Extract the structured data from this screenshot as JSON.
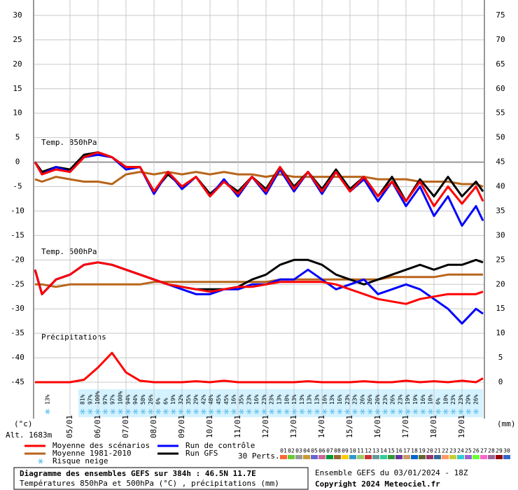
{
  "chart_data": {
    "type": "line",
    "title": "Diagramme des ensembles GEFS sur 384h : 46.5N 11.7E",
    "subtitle": "Températures 850hPa et 500hPa (°C) , précipitations (mm)",
    "run_label": "Ensemble GEFS du 03/01/2024 - 18Z",
    "copyright": "Copyright 2024 Meteociel.fr",
    "altitude": "Alt. 1683m",
    "y_unit": "(°c)",
    "y2_unit": "(mm)",
    "level_labels": {
      "t850": "Temp. 850hPa",
      "t500": "Temp. 500hPa",
      "precip": "Précipitations"
    },
    "perts_label": "30 Perts.",
    "members": [
      {
        "label": "01",
        "color": "#ff6633"
      },
      {
        "label": "02",
        "color": "#66cc33"
      },
      {
        "label": "03",
        "color": "#999999"
      },
      {
        "label": "04",
        "color": "#cc9933"
      },
      {
        "label": "05",
        "color": "#6666cc"
      },
      {
        "label": "06",
        "color": "#cc6699"
      },
      {
        "label": "07",
        "color": "#009933"
      },
      {
        "label": "08",
        "color": "#996633"
      },
      {
        "label": "09",
        "color": "#ffcc00"
      },
      {
        "label": "10",
        "color": "#3399cc"
      },
      {
        "label": "11",
        "color": "#99cc66"
      },
      {
        "label": "12",
        "color": "#cc3333"
      },
      {
        "label": "13",
        "color": "#669999"
      },
      {
        "label": "14",
        "color": "#33cc99"
      },
      {
        "label": "15",
        "color": "#339933"
      },
      {
        "label": "16",
        "color": "#663399"
      },
      {
        "label": "17",
        "color": "#cc9966"
      },
      {
        "label": "18",
        "color": "#0066cc"
      },
      {
        "label": "19",
        "color": "#666633"
      },
      {
        "label": "20",
        "color": "#993366"
      },
      {
        "label": "21",
        "color": "#336699"
      },
      {
        "label": "22",
        "color": "#ff9966"
      },
      {
        "label": "23",
        "color": "#cccc33"
      },
      {
        "label": "24",
        "color": "#33cccc"
      },
      {
        "label": "25",
        "color": "#9966cc"
      },
      {
        "label": "26",
        "color": "#66ff33"
      },
      {
        "label": "27",
        "color": "#ff66cc"
      },
      {
        "label": "28",
        "color": "#996699"
      },
      {
        "label": "29",
        "color": "#990000"
      },
      {
        "label": "30",
        "color": "#3366cc"
      }
    ],
    "x": [
      0,
      6,
      18,
      30,
      42,
      54,
      66,
      78,
      90,
      102,
      114,
      126,
      138,
      150,
      162,
      174,
      186,
      198,
      210,
      222,
      234,
      246,
      258,
      270,
      282,
      294,
      306,
      318,
      330,
      342,
      354,
      366,
      378,
      384
    ],
    "xlim": [
      0,
      384
    ],
    "xticks": [
      {
        "value": 30,
        "label": "05/01"
      },
      {
        "value": 54,
        "label": "06/01"
      },
      {
        "value": 78,
        "label": "07/01"
      },
      {
        "value": 102,
        "label": "08/01"
      },
      {
        "value": 126,
        "label": "09/01"
      },
      {
        "value": 150,
        "label": "10/01"
      },
      {
        "value": 174,
        "label": "11/01"
      },
      {
        "value": 198,
        "label": "12/01"
      },
      {
        "value": 222,
        "label": "13/01"
      },
      {
        "value": 246,
        "label": "14/01"
      },
      {
        "value": 270,
        "label": "15/01"
      },
      {
        "value": 294,
        "label": "16/01"
      },
      {
        "value": 318,
        "label": "17/01"
      },
      {
        "value": 342,
        "label": "18/01"
      },
      {
        "value": 366,
        "label": "19/01"
      }
    ],
    "ylim": [
      -45,
      30
    ],
    "yticks": [
      -45,
      -40,
      -35,
      -30,
      -25,
      -20,
      -15,
      -10,
      -5,
      0,
      5,
      10,
      15,
      20,
      25,
      30
    ],
    "y2lim": [
      0,
      75
    ],
    "y2ticks": [
      0,
      5,
      10,
      15,
      20,
      25,
      30,
      35,
      40,
      45,
      50,
      55,
      60,
      65,
      70,
      75
    ],
    "grid": true,
    "series": [
      {
        "name": "Moyenne des scénarios",
        "color": "#ff0000",
        "t850": [
          0,
          -2.5,
          -1.5,
          -2,
          1,
          2,
          1,
          -1,
          -1,
          -6,
          -2,
          -5,
          -3,
          -7,
          -4,
          -6.5,
          -3,
          -6,
          -1,
          -5.5,
          -2,
          -6,
          -2,
          -6,
          -3,
          -7,
          -4,
          -8,
          -4,
          -9,
          -5,
          -8.5,
          -5,
          -8
        ],
        "t500": [
          -22,
          -27,
          -24,
          -23,
          -21,
          -20.5,
          -21,
          -22,
          -23,
          -24,
          -25,
          -25.5,
          -26,
          -26.5,
          -26,
          -25.5,
          -25.5,
          -25,
          -24.5,
          -24.5,
          -24.5,
          -24.5,
          -25,
          -26,
          -27,
          -28,
          -28.5,
          -29,
          -28,
          -27.5,
          -27,
          -27,
          -27,
          -26.5
        ],
        "precip": [
          0,
          0,
          0,
          0,
          0.5,
          3,
          6,
          2,
          0.3,
          0,
          0,
          0,
          0.2,
          0,
          0.3,
          0,
          0,
          0,
          0,
          0,
          0.2,
          0,
          0,
          0,
          0.2,
          0,
          0,
          0.3,
          0,
          0.2,
          0,
          0.3,
          0,
          0.8
        ]
      },
      {
        "name": "Moyenne 1981-2010",
        "color": "#b8651b",
        "t850": [
          -3.5,
          -4,
          -3,
          -3.5,
          -4,
          -4,
          -4.5,
          -2.5,
          -2,
          -2.5,
          -2,
          -2.5,
          -2,
          -2.5,
          -2,
          -2.5,
          -2.5,
          -3,
          -2.5,
          -3,
          -3,
          -3,
          -3,
          -3,
          -3,
          -3.5,
          -3.5,
          -3.5,
          -4,
          -4,
          -4,
          -4.5,
          -4.5,
          -5
        ],
        "t500": [
          -25,
          -25,
          -25.5,
          -25,
          -25,
          -25,
          -25,
          -25,
          -25,
          -24.5,
          -24.5,
          -24.5,
          -24.5,
          -24.5,
          -24.5,
          -24.5,
          -24.5,
          -24.5,
          -24,
          -24,
          -24,
          -24,
          -24,
          -24,
          -24,
          -24,
          -23.5,
          -23.5,
          -23.5,
          -23.5,
          -23,
          -23,
          -23,
          -23
        ]
      },
      {
        "name": "Run de contrôle",
        "color": "#0000ff",
        "t850": [
          0,
          -2.5,
          -1,
          -2,
          1,
          1.5,
          1,
          -1.5,
          -1,
          -6.5,
          -2,
          -5.5,
          -3,
          -7,
          -3.5,
          -7,
          -3,
          -6.5,
          -1.5,
          -6,
          -2,
          -6.5,
          -2,
          -6,
          -3.5,
          -8,
          -4,
          -9,
          -5,
          -11,
          -7,
          -13,
          -9,
          -12
        ],
        "t500": [
          -22,
          -27,
          -24,
          -23,
          -21,
          -20.5,
          -21,
          -22,
          -23,
          -24,
          -25,
          -26,
          -27,
          -27,
          -26,
          -26,
          -25,
          -25,
          -24,
          -24,
          -22,
          -24,
          -26,
          -25,
          -24,
          -27,
          -26,
          -25,
          -26,
          -28,
          -30,
          -33,
          -30,
          -31
        ]
      },
      {
        "name": "Run GFS",
        "color": "#000000",
        "t850": [
          0,
          -2,
          -1,
          -1.5,
          1.5,
          2,
          1,
          -1,
          -1,
          -6,
          -2.5,
          -5,
          -3,
          -6.5,
          -4,
          -6,
          -3,
          -5.5,
          -1,
          -5,
          -2,
          -5.5,
          -1.5,
          -5.5,
          -3,
          -7,
          -3,
          -8,
          -3.5,
          -7,
          -3,
          -7,
          -4,
          -6
        ],
        "t500": [
          -22,
          -27,
          -24,
          -23,
          -21,
          -20.5,
          -21,
          -22,
          -23,
          -24,
          -25,
          -25.5,
          -26,
          -26,
          -26,
          -25.5,
          -24,
          -23,
          -21,
          -20,
          -20,
          -21,
          -23,
          -24,
          -25,
          -24,
          -23,
          -22,
          -21,
          -22,
          -21,
          -21,
          -20,
          -20.5
        ]
      }
    ],
    "snow_risk": {
      "name": "Risque neige",
      "color": "#2a9fd6",
      "values": [
        13,
        81,
        97,
        100,
        97,
        97,
        100,
        94,
        94,
        58,
        26,
        6,
        6,
        19,
        32,
        35,
        29,
        42,
        48,
        45,
        45,
        16,
        35,
        23,
        16,
        23,
        23,
        13,
        10,
        13,
        13,
        13,
        13,
        16,
        13,
        16,
        23,
        23,
        26,
        26,
        26,
        23,
        26,
        23,
        19,
        19,
        16,
        10,
        6,
        10,
        23,
        23,
        29,
        26
      ],
      "value_labels": [
        "13%",
        "81%",
        "97%",
        "100%",
        "97%",
        "97%",
        "100%",
        "94%",
        "94%",
        "58%",
        "26%",
        "6%",
        "6%",
        "19%",
        "32%",
        "35%",
        "29%",
        "42%",
        "48%",
        "45%",
        "45%",
        "16%",
        "35%",
        "23%",
        "16%",
        "23%",
        "23%",
        "13%",
        "10%",
        "13%",
        "13%",
        "13%",
        "13%",
        "16%",
        "13%",
        "16%",
        "23%",
        "23%",
        "26%",
        "26%",
        "26%",
        "23%",
        "26%",
        "23%",
        "19%",
        "19%",
        "16%",
        "10%",
        "6%",
        "10%",
        "23%",
        "23%",
        "29%",
        "26%"
      ]
    }
  }
}
